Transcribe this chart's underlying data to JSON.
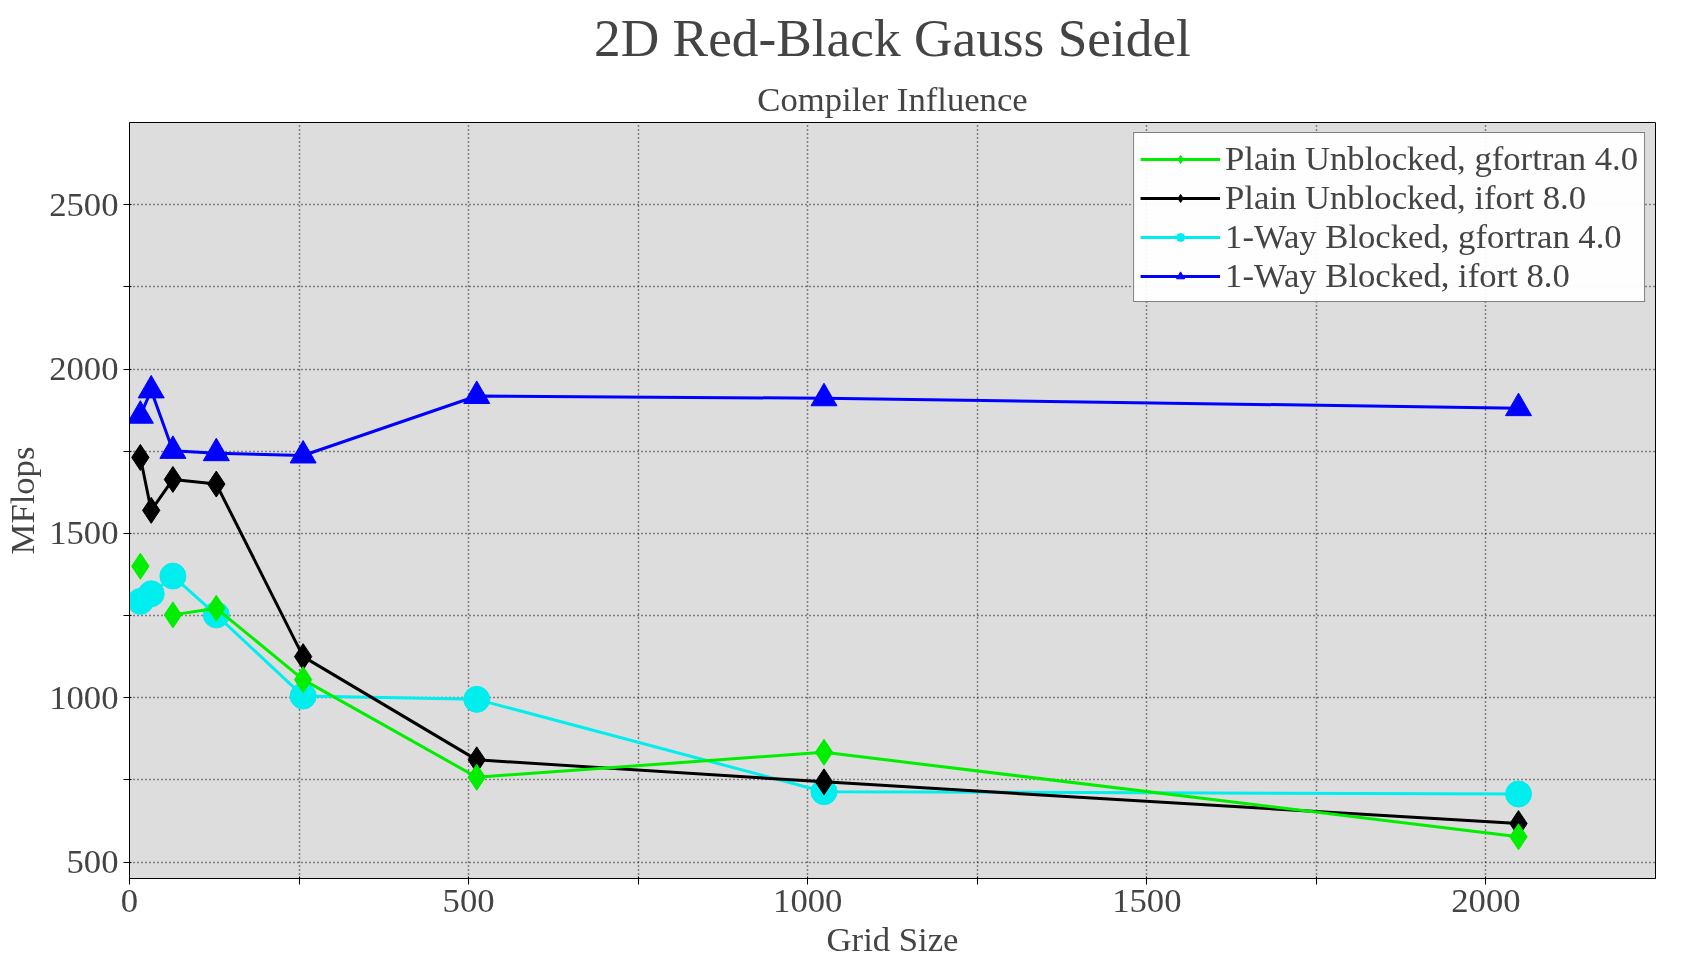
{
  "chart_data": {
    "type": "line",
    "title": "2D Red-Black Gauss Seidel",
    "subtitle": "Compiler Influence",
    "xlabel": "Grid Size",
    "ylabel": "MFlops",
    "x": [
      16,
      32,
      64,
      128,
      256,
      512,
      1024,
      2048
    ],
    "series": [
      {
        "name": "Plain Unblocked, gfortran 4.0",
        "color": "#00ee00",
        "marker": "diamond",
        "values": [
          1400,
          null,
          1252,
          1272,
          1055,
          758,
          834,
          577
        ]
      },
      {
        "name": "Plain Unblocked, ifort 8.0",
        "color": "#000000",
        "marker": "diamond",
        "values": [
          1731,
          1570,
          1664,
          1650,
          1125,
          811,
          744,
          617
        ]
      },
      {
        "name": "1-Way Blocked, gfortran 4.0",
        "color": "#00eeee",
        "marker": "circle",
        "values": [
          1293,
          1316,
          1370,
          1252,
          1005,
          995,
          714,
          707
        ]
      },
      {
        "name": "1-Way Blocked, ifort 8.0",
        "color": "#0000ff",
        "marker": "triangle",
        "values": [
          1858,
          1935,
          1751,
          1744,
          1737,
          1918,
          1911,
          1881
        ]
      }
    ],
    "xlim": [
      0,
      2250
    ],
    "ylim": [
      450,
      2750
    ],
    "xticks": [
      0,
      {
        "value": 250,
        "label": null
      },
      500,
      {
        "value": 750,
        "label": null
      },
      1000,
      {
        "value": 1250,
        "label": null
      },
      1500,
      {
        "value": 1750,
        "label": null
      },
      2000
    ],
    "yticks": [
      500,
      {
        "value": 750,
        "label": null
      },
      1000,
      {
        "value": 1250,
        "label": null
      },
      1500,
      {
        "value": 1750,
        "label": null
      },
      2000,
      {
        "value": 2250,
        "label": null
      },
      2500
    ],
    "grid": true,
    "legend": "top right",
    "line_style": "solid"
  }
}
